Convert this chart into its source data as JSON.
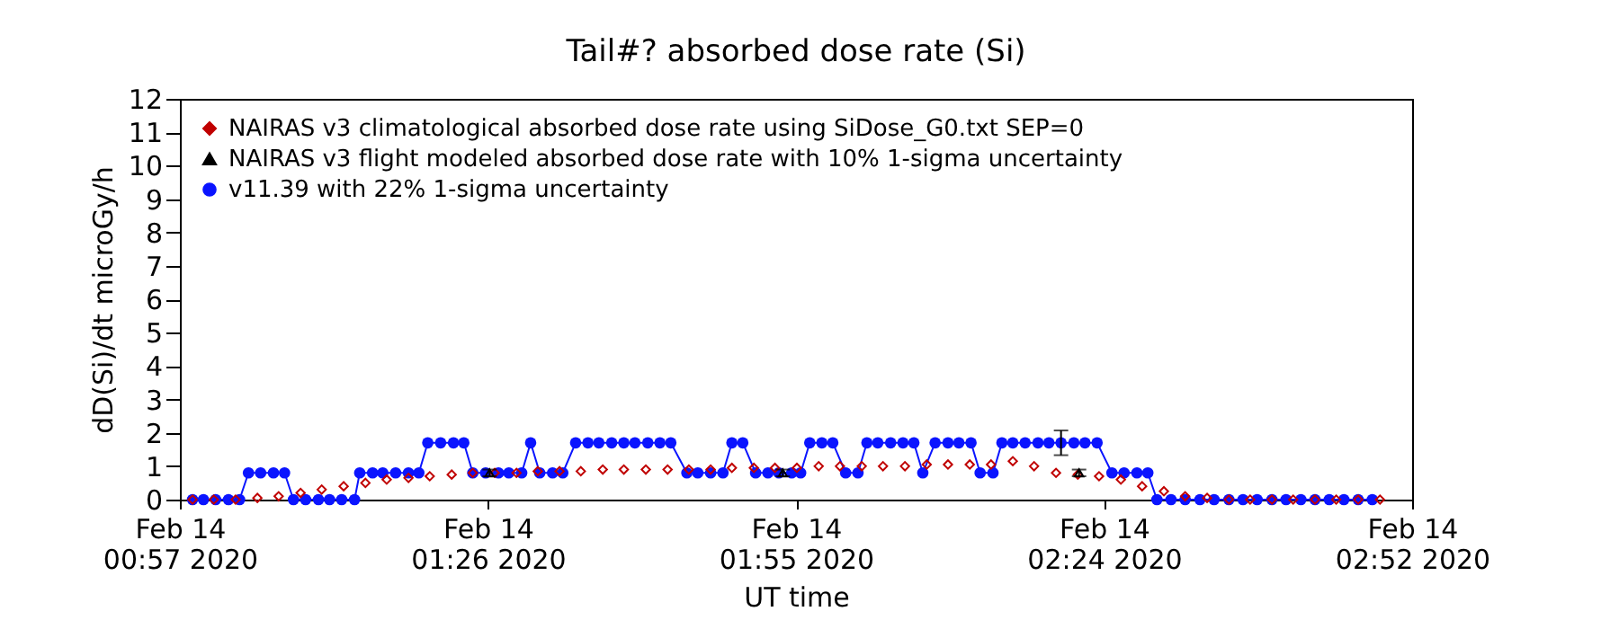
{
  "chart_data": {
    "type": "line",
    "title": "Tail#? absorbed dose rate (Si)",
    "xlabel": "UT time",
    "ylabel": "dD(Si)/dt microGy/h",
    "xlim": [
      "2020-02-14T00:57:30",
      "2020-02-14T02:52:30"
    ],
    "xticks": [
      {
        "value": "2020-02-14T00:57:30",
        "label": "Feb 14\n00:57 2020"
      },
      {
        "value": "2020-02-14T01:26:15",
        "label": "Feb 14\n01:26 2020"
      },
      {
        "value": "2020-02-14T01:55:00",
        "label": "Feb 14\n01:55 2020"
      },
      {
        "value": "2020-02-14T02:23:45",
        "label": "Feb 14\n02:24 2020"
      },
      {
        "value": "2020-02-14T02:52:30",
        "label": "Feb 14\n02:52 2020"
      }
    ],
    "ylim": [
      0,
      12
    ],
    "yticks": [
      0,
      1,
      2,
      3,
      4,
      5,
      6,
      7,
      8,
      9,
      10,
      11,
      12
    ],
    "grid": false,
    "legend": "top left",
    "series": [
      {
        "name": "NAIRAS v3 climatological absorbed dose rate using SiDose_G0.txt SEP=0",
        "type": "scatter",
        "marker": "diamond",
        "color": "#c00000",
        "x": [
          "2020-02-14T00:58:41",
          "2020-02-14T01:00:40",
          "2020-02-14T01:02:42",
          "2020-02-14T01:04:44",
          "2020-02-14T01:06:43",
          "2020-02-14T01:08:46",
          "2020-02-14T01:10:44",
          "2020-02-14T01:12:47",
          "2020-02-14T01:14:49",
          "2020-02-14T01:16:48",
          "2020-02-14T01:18:50",
          "2020-02-14T01:20:49",
          "2020-02-14T01:22:52",
          "2020-02-14T01:24:50",
          "2020-02-14T01:26:53",
          "2020-02-14T01:28:55",
          "2020-02-14T01:30:54",
          "2020-02-14T01:32:56",
          "2020-02-14T01:34:55",
          "2020-02-14T01:36:58",
          "2020-02-14T01:38:56",
          "2020-02-14T01:40:59",
          "2020-02-14T01:43:01",
          "2020-02-14T01:45:00",
          "2020-02-14T01:47:02",
          "2020-02-14T01:49:01",
          "2020-02-14T01:51:04",
          "2020-02-14T01:53:02",
          "2020-02-14T01:55:05",
          "2020-02-14T01:57:07",
          "2020-02-14T01:59:06",
          "2020-02-14T02:01:08",
          "2020-02-14T02:03:07",
          "2020-02-14T02:05:10",
          "2020-02-14T02:07:12",
          "2020-02-14T02:09:11",
          "2020-02-14T02:11:13",
          "2020-02-14T02:13:12",
          "2020-02-14T02:15:14",
          "2020-02-14T02:17:13",
          "2020-02-14T02:19:16",
          "2020-02-14T02:21:18",
          "2020-02-14T02:23:17",
          "2020-02-14T02:25:19",
          "2020-02-14T02:27:18",
          "2020-02-14T02:29:20",
          "2020-02-14T02:31:19",
          "2020-02-14T02:33:22",
          "2020-02-14T02:35:24",
          "2020-02-14T02:37:23",
          "2020-02-14T02:39:25",
          "2020-02-14T02:41:24",
          "2020-02-14T02:43:26",
          "2020-02-14T02:45:25",
          "2020-02-14T02:47:28",
          "2020-02-14T02:49:30"
        ],
        "values": [
          0,
          0,
          0,
          0.05,
          0.1,
          0.2,
          0.3,
          0.4,
          0.5,
          0.6,
          0.65,
          0.7,
          0.75,
          0.8,
          0.8,
          0.8,
          0.85,
          0.85,
          0.85,
          0.9,
          0.9,
          0.9,
          0.9,
          0.9,
          0.9,
          0.95,
          0.95,
          0.95,
          0.95,
          1.0,
          1.0,
          1.0,
          1.0,
          1.0,
          1.05,
          1.05,
          1.05,
          1.05,
          1.15,
          1.0,
          0.8,
          0.75,
          0.7,
          0.6,
          0.4,
          0.25,
          0.1,
          0.05,
          0,
          0,
          0,
          0,
          0,
          0,
          0,
          0
        ]
      },
      {
        "name": "NAIRAS v3 flight modeled absorbed dose rate with 10% 1-sigma uncertainty",
        "type": "scatter",
        "marker": "triangle",
        "color": "#000000",
        "x": [
          "2020-02-14T01:26:24",
          "2020-02-14T01:53:46",
          "2020-02-14T02:21:25"
        ],
        "values": [
          0.8,
          0.8,
          0.8
        ],
        "errors": [
          0.1,
          0.1,
          0.1
        ]
      },
      {
        "name": "v11.39 with 22% 1-sigma uncertainty",
        "marker": "circle",
        "color": "#0a14ff",
        "x": [
          "2020-02-14T00:58:41",
          "2020-02-14T00:59:42",
          "2020-02-14T01:00:50",
          "2020-02-14T01:02:02",
          "2020-02-14T01:03:04",
          "2020-02-14T01:03:54",
          "2020-02-14T01:05:02",
          "2020-02-14T01:06:14",
          "2020-02-14T01:07:16",
          "2020-02-14T01:08:06",
          "2020-02-14T01:09:14",
          "2020-02-14T01:10:26",
          "2020-02-14T01:11:28",
          "2020-02-14T01:12:36",
          "2020-02-14T01:13:48",
          "2020-02-14T01:14:17",
          "2020-02-14T01:15:29",
          "2020-02-14T01:16:26",
          "2020-02-14T01:17:38",
          "2020-02-14T01:18:50",
          "2020-02-14T01:19:48",
          "2020-02-14T01:20:38",
          "2020-02-14T01:21:50",
          "2020-02-14T01:23:02",
          "2020-02-14T01:24:00",
          "2020-02-14T01:24:50",
          "2020-02-14T01:26:02",
          "2020-02-14T01:27:14",
          "2020-02-14T01:28:12",
          "2020-02-14T01:29:24",
          "2020-02-14T01:30:14",
          "2020-02-14T01:31:05",
          "2020-02-14T01:32:17",
          "2020-02-14T01:33:14",
          "2020-02-14T01:34:26",
          "2020-02-14T01:35:35",
          "2020-02-14T01:36:36",
          "2020-02-14T01:37:48",
          "2020-02-14T01:38:56",
          "2020-02-14T01:39:58",
          "2020-02-14T01:41:10",
          "2020-02-14T01:42:18",
          "2020-02-14T01:43:19",
          "2020-02-14T01:44:49",
          "2020-02-14T01:45:50",
          "2020-02-14T01:47:02",
          "2020-02-14T01:48:11",
          "2020-02-14T01:49:01",
          "2020-02-14T01:50:02",
          "2020-02-14T01:51:14",
          "2020-02-14T01:52:23",
          "2020-02-14T01:53:24",
          "2020-02-14T01:54:36",
          "2020-02-14T01:55:26",
          "2020-02-14T01:56:17",
          "2020-02-14T01:57:25",
          "2020-02-14T01:58:26",
          "2020-02-14T01:59:38",
          "2020-02-14T02:00:47",
          "2020-02-14T02:01:37",
          "2020-02-14T02:02:38",
          "2020-02-14T02:03:50",
          "2020-02-14T02:04:59",
          "2020-02-14T02:06:00",
          "2020-02-14T02:06:50",
          "2020-02-14T02:07:59",
          "2020-02-14T02:09:11",
          "2020-02-14T02:10:12",
          "2020-02-14T02:11:20",
          "2020-02-14T02:12:11",
          "2020-02-14T02:13:23",
          "2020-02-14T02:14:13",
          "2020-02-14T02:15:14",
          "2020-02-14T02:16:23",
          "2020-02-14T02:17:35",
          "2020-02-14T02:18:36",
          "2020-02-14T02:19:44",
          "2020-02-14T02:20:56",
          "2020-02-14T02:21:58",
          "2020-02-14T02:23:06",
          "2020-02-14T02:24:29",
          "2020-02-14T02:25:37",
          "2020-02-14T02:26:49",
          "2020-02-14T02:27:50",
          "2020-02-14T02:28:41",
          "2020-02-14T02:30:00",
          "2020-02-14T02:31:19",
          "2020-02-14T02:32:42",
          "2020-02-14T02:34:01",
          "2020-02-14T02:35:24",
          "2020-02-14T02:36:43",
          "2020-02-14T02:38:02",
          "2020-02-14T02:39:25",
          "2020-02-14T02:40:44",
          "2020-02-14T02:42:07",
          "2020-02-14T02:43:26",
          "2020-02-14T02:44:46",
          "2020-02-14T02:46:08",
          "2020-02-14T02:47:28",
          "2020-02-14T02:48:47"
        ],
        "values": [
          0,
          0,
          0,
          0,
          0,
          0.8,
          0.8,
          0.8,
          0.8,
          0,
          0,
          0,
          0,
          0,
          0,
          0.8,
          0.8,
          0.8,
          0.8,
          0.8,
          0.8,
          1.7,
          1.7,
          1.7,
          1.7,
          0.8,
          0.8,
          0.8,
          0.8,
          0.8,
          1.7,
          0.8,
          0.8,
          0.8,
          1.7,
          1.7,
          1.7,
          1.7,
          1.7,
          1.7,
          1.7,
          1.7,
          1.7,
          0.8,
          0.8,
          0.8,
          0.8,
          1.7,
          1.7,
          0.8,
          0.8,
          0.8,
          0.8,
          0.8,
          1.7,
          1.7,
          1.7,
          0.8,
          0.8,
          1.7,
          1.7,
          1.7,
          1.7,
          1.7,
          0.8,
          1.7,
          1.7,
          1.7,
          1.7,
          0.8,
          0.8,
          1.7,
          1.7,
          1.7,
          1.7,
          1.7,
          1.7,
          1.7,
          1.7,
          1.7,
          0.8,
          0.8,
          0.8,
          0.8,
          0,
          0,
          0,
          0,
          0,
          0,
          0,
          0,
          0,
          0,
          0,
          0,
          0,
          0,
          0,
          0
        ],
        "errors": [
          null,
          null,
          null,
          null,
          null,
          null,
          null,
          null,
          null,
          null,
          null,
          null,
          null,
          null,
          null,
          null,
          null,
          null,
          null,
          null,
          null,
          null,
          null,
          null,
          null,
          null,
          null,
          null,
          null,
          null,
          null,
          null,
          null,
          null,
          null,
          null,
          null,
          null,
          null,
          null,
          null,
          null,
          null,
          null,
          null,
          null,
          null,
          null,
          null,
          null,
          null,
          null,
          null,
          null,
          null,
          null,
          null,
          null,
          null,
          null,
          null,
          null,
          null,
          null,
          null,
          null,
          null,
          null,
          null,
          null,
          null,
          null,
          null,
          null,
          null,
          null,
          0.37,
          null,
          null,
          null,
          null,
          null,
          null,
          null,
          null,
          null,
          null,
          null,
          null,
          null,
          null,
          null,
          null,
          null,
          null,
          null,
          null,
          null,
          null,
          null
        ]
      }
    ]
  }
}
